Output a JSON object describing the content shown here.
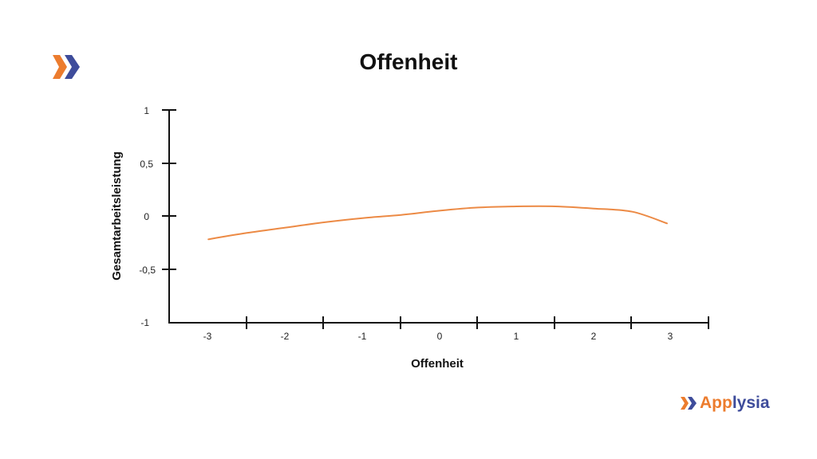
{
  "header": {
    "title": "Offenheit"
  },
  "brand": {
    "name_part1": "App",
    "name_part2": "lysia",
    "color_orange": "#ec7c2e",
    "color_blue": "#3e4c9b",
    "icon": "double-chevron-icon"
  },
  "chart_data": {
    "type": "line",
    "title": "Offenheit",
    "xlabel": "Offenheit",
    "ylabel": "Gesamtarbeitsleistung",
    "xlim": [
      -3.5,
      3.5
    ],
    "ylim": [
      -1,
      1
    ],
    "x_ticks": [
      "-3",
      "-2",
      "-1",
      "0",
      "1",
      "2",
      "3"
    ],
    "y_ticks": [
      "1",
      "0,5",
      "0",
      "-0,5",
      "-1"
    ],
    "grid": false,
    "legend": null,
    "line_color": "#ec8a45",
    "series": [
      {
        "name": "Gesamtarbeitsleistung",
        "x": [
          -3,
          -2.5,
          -2,
          -1.5,
          -1,
          -0.5,
          0,
          0.5,
          1,
          1.5,
          2,
          2.5,
          2.95
        ],
        "y": [
          -0.22,
          -0.16,
          -0.11,
          -0.06,
          -0.02,
          0.01,
          0.05,
          0.08,
          0.09,
          0.09,
          0.07,
          0.04,
          -0.07
        ]
      }
    ]
  }
}
